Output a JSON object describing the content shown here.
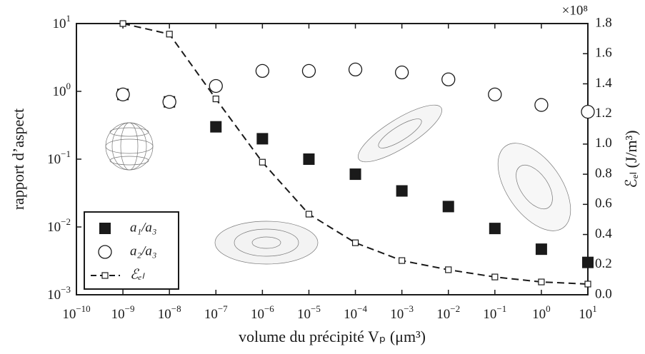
{
  "chart_data": {
    "type": "scatter",
    "x_label": "volume du précipité Vₚ (μm³)",
    "y_label": "rapport d’aspect",
    "y2_label": "ℰₑₗ (J/m³)",
    "y2_multiplier": "×10⁸",
    "xscale": "log",
    "yscale": "log",
    "xlim": [
      1e-10,
      10
    ],
    "ylim": [
      0.001,
      10
    ],
    "y2lim": [
      0,
      1.8
    ],
    "xticks": [
      {
        "value": 1e-10,
        "label": "10",
        "exponent": "−10"
      },
      {
        "value": 1e-09,
        "label": "10",
        "exponent": "−9"
      },
      {
        "value": 1e-08,
        "label": "10",
        "exponent": "−8"
      },
      {
        "value": 1e-07,
        "label": "10",
        "exponent": "−7"
      },
      {
        "value": 1e-06,
        "label": "10",
        "exponent": "−6"
      },
      {
        "value": 1e-05,
        "label": "10",
        "exponent": "−5"
      },
      {
        "value": 0.0001,
        "label": "10",
        "exponent": "−4"
      },
      {
        "value": 0.001,
        "label": "10",
        "exponent": "−3"
      },
      {
        "value": 0.01,
        "label": "10",
        "exponent": "−2"
      },
      {
        "value": 0.1,
        "label": "10",
        "exponent": "−1"
      },
      {
        "value": 1,
        "label": "10",
        "exponent": "0"
      },
      {
        "value": 10,
        "label": "10",
        "exponent": "1"
      }
    ],
    "yticks": [
      {
        "value": 0.001,
        "label": "10",
        "exponent": "−3"
      },
      {
        "value": 0.01,
        "label": "10",
        "exponent": "−2"
      },
      {
        "value": 0.1,
        "label": "10",
        "exponent": "−1"
      },
      {
        "value": 1,
        "label": "10",
        "exponent": "0"
      },
      {
        "value": 10,
        "label": "10",
        "exponent": "1"
      }
    ],
    "y2ticks": [
      {
        "value": 0,
        "label": "0.0"
      },
      0.2,
      0.4,
      0.6,
      0.8,
      {
        "value": 1,
        "label": "1.0"
      },
      1.2,
      1.4,
      1.6,
      1.8
    ],
    "legend": "lower left",
    "x": [
      1e-09,
      1e-08,
      1e-07,
      1e-06,
      1e-05,
      0.0001,
      0.001,
      0.01,
      0.1,
      1,
      10
    ],
    "series": [
      {
        "name": "a₁/a₃",
        "color": "#1a1a1a",
        "marker": "square",
        "values": [
          0.9,
          0.7,
          0.3,
          0.2,
          0.1,
          0.06,
          0.034,
          0.02,
          0.0095,
          0.0047,
          0.003
        ]
      },
      {
        "name": "a₂/a₃",
        "color": "#1a1a1a",
        "marker": "circle",
        "values": [
          0.9,
          0.7,
          1.2,
          2.0,
          2.0,
          2.1,
          1.9,
          1.5,
          0.9,
          0.63,
          0.5
        ]
      },
      {
        "name": "ℰₑₗ",
        "color": "#1a1a1a",
        "marker": "square-open",
        "line": "dashed",
        "axis": "y2",
        "values": [
          1.8,
          1.73,
          1.3,
          0.88,
          0.535,
          0.345,
          0.227,
          0.166,
          0.118,
          0.085,
          0.071
        ]
      }
    ]
  }
}
